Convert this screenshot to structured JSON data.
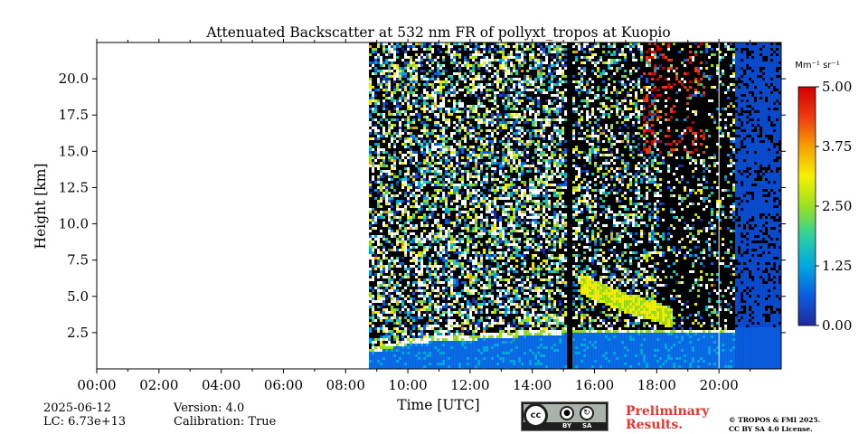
{
  "chart_data": {
    "type": "heatmap",
    "title": "Attenuated Backscatter at 532 nm FR of pollyxt_tropos at Kuopio",
    "xlabel": "Time [UTC]",
    "ylabel": "Height [km]",
    "xlim_hours": [
      0,
      22
    ],
    "ylim_km": [
      0,
      22.5
    ],
    "x_ticks": [
      {
        "value": 0,
        "label": "00:00"
      },
      {
        "value": 2,
        "label": "02:00"
      },
      {
        "value": 4,
        "label": "04:00"
      },
      {
        "value": 6,
        "label": "06:00"
      },
      {
        "value": 8,
        "label": "08:00"
      },
      {
        "value": 10,
        "label": "10:00"
      },
      {
        "value": 12,
        "label": "12:00"
      },
      {
        "value": 14,
        "label": "14:00"
      },
      {
        "value": 16,
        "label": "16:00"
      },
      {
        "value": 18,
        "label": "18:00"
      },
      {
        "value": 20,
        "label": "20:00"
      }
    ],
    "y_ticks": [
      {
        "value": 2.5,
        "label": "2.5"
      },
      {
        "value": 5.0,
        "label": "5.0"
      },
      {
        "value": 7.5,
        "label": "7.5"
      },
      {
        "value": 10.0,
        "label": "10.0"
      },
      {
        "value": 12.5,
        "label": "12.5"
      },
      {
        "value": 15.0,
        "label": "15.0"
      },
      {
        "value": 17.5,
        "label": "17.5"
      },
      {
        "value": 20.0,
        "label": "20.0"
      }
    ],
    "data_start_hour": 8.75,
    "gaps_hours": [
      [
        15.1,
        15.25
      ]
    ],
    "layers": [
      {
        "name": "boundary layer top",
        "hours": [
          8.75,
          10,
          11,
          12,
          13,
          14,
          15
        ],
        "top_km": [
          1.2,
          1.8,
          2.0,
          2.1,
          2.2,
          2.4,
          2.5
        ]
      },
      {
        "name": "aerosol layer",
        "hours": [
          15.5,
          16,
          17,
          18,
          18.5
        ],
        "top_km": [
          6.0,
          5.5,
          4.6,
          4.0,
          3.5
        ]
      }
    ],
    "colorbar": {
      "unit": "Mm⁻¹ sr⁻¹",
      "range": [
        0,
        5
      ],
      "ticks": [
        "0.00",
        "1.25",
        "2.50",
        "3.75",
        "5.00"
      ],
      "colormap": [
        "#1f2a9a",
        "#0a5ce0",
        "#00a8e0",
        "#2cd0a0",
        "#9be020",
        "#f5f000",
        "#f5a000",
        "#f03a10",
        "#d00000"
      ]
    }
  },
  "footer": {
    "date": "2025-06-12",
    "lc": "LC: 6.73e+13",
    "version": "Version: 4.0",
    "calibration": "Calibration: True",
    "preliminary_line1": "Preliminary",
    "preliminary_line2": "Results.",
    "copyright_line1": "© TROPOS & FMI 2025.",
    "copyright_line2": "CC BY SA 4.0 License.",
    "license_by": "BY",
    "license_sa": "SA",
    "license_cc": "cc"
  }
}
